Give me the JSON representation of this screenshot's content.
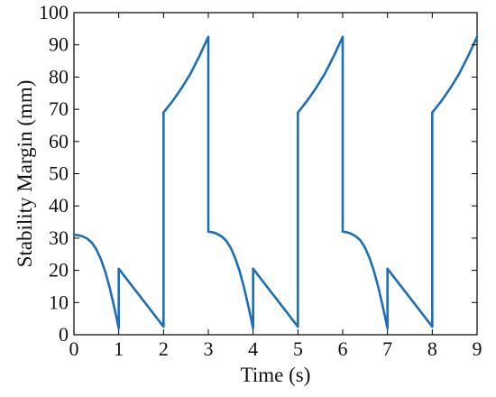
{
  "chart_data": {
    "type": "line",
    "title": "",
    "xlabel": "Time (s)",
    "ylabel": "Stability Margin (mm)",
    "xlim": [
      0,
      9
    ],
    "ylim": [
      0,
      100
    ],
    "xticks": [
      0,
      1,
      2,
      3,
      4,
      5,
      6,
      7,
      8,
      9
    ],
    "yticks": [
      0,
      10,
      20,
      30,
      40,
      50,
      60,
      70,
      80,
      90,
      100
    ],
    "grid": false,
    "legend": "none",
    "series": [
      {
        "color": "#1a6fb8",
        "x": [
          0,
          0.1,
          0.2,
          0.3,
          0.4,
          0.5,
          0.6,
          0.7,
          0.8,
          0.9,
          0.97,
          1.0,
          1.0,
          2.0,
          2.0,
          2.2,
          2.4,
          2.6,
          2.8,
          3.0,
          3.0,
          3.1,
          3.2,
          3.3,
          3.4,
          3.5,
          3.6,
          3.7,
          3.8,
          3.9,
          3.97,
          4.0,
          4.0,
          5.0,
          5.0,
          5.2,
          5.4,
          5.6,
          5.8,
          6.0,
          6.0,
          6.1,
          6.2,
          6.3,
          6.4,
          6.5,
          6.6,
          6.7,
          6.8,
          6.9,
          6.97,
          7.0,
          7.0,
          8.0,
          8.0,
          8.2,
          8.4,
          8.6,
          8.8,
          9.0
        ],
        "y": [
          31,
          30.9,
          30.5,
          29.8,
          28.6,
          26.5,
          23.5,
          19.5,
          14.5,
          8.5,
          4,
          2,
          20.5,
          2.5,
          69,
          72.5,
          76.5,
          81,
          86.5,
          92.5,
          32,
          31.8,
          31.3,
          30.5,
          29.2,
          27,
          23.8,
          19.7,
          14.5,
          8.5,
          4,
          2,
          20.5,
          2.5,
          69,
          72.5,
          76.5,
          81,
          86.5,
          92.5,
          32,
          31.8,
          31.3,
          30.5,
          29.2,
          27,
          23.8,
          19.7,
          14.5,
          8.5,
          4,
          2,
          20.5,
          2.5,
          69,
          72.5,
          76.5,
          81,
          86.5,
          92.5
        ]
      }
    ]
  }
}
